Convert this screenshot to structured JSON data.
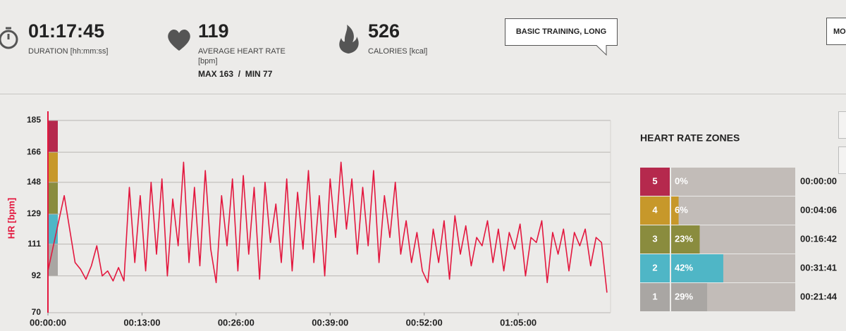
{
  "header": {
    "duration": {
      "value": "01:17:45",
      "label": "DURATION [hh:mm:ss]"
    },
    "heart_rate": {
      "value": "119",
      "label": "AVERAGE HEART RATE",
      "unit": "[bpm]",
      "range": "MAX 163  /  MIN 77"
    },
    "calories": {
      "value": "526",
      "label": "CALORIES [kcal]"
    },
    "training_type": "BASIC TRAINING, LONG",
    "partial_button": "MO"
  },
  "chart_data": {
    "type": "line",
    "y_label": "HR [bpm]",
    "color": "#e3173e",
    "grid": true,
    "x": [
      0,
      0.75,
      1.5,
      2.25,
      3,
      3.75,
      4.5,
      5.25,
      6,
      6.75,
      7.5,
      8.25,
      9,
      9.75,
      10.5,
      11.25,
      12,
      12.75,
      13.5,
      14.25,
      15,
      15.75,
      16.5,
      17.25,
      18,
      18.75,
      19.5,
      20.25,
      21,
      21.75,
      22.5,
      23.25,
      24,
      24.75,
      25.5,
      26.25,
      27,
      27.75,
      28.5,
      29.25,
      30,
      30.75,
      31.5,
      32.25,
      33,
      33.75,
      34.5,
      35.25,
      36,
      36.75,
      37.5,
      38.25,
      39,
      39.75,
      40.5,
      41.25,
      42,
      42.75,
      43.5,
      44.25,
      45,
      45.75,
      46.5,
      47.25,
      48,
      48.75,
      49.5,
      50.25,
      51,
      51.75,
      52.5,
      53.25,
      54,
      54.75,
      55.5,
      56.25,
      57,
      57.75,
      58.5,
      59.25,
      60,
      60.75,
      61.5,
      62.25,
      63,
      63.75,
      64.5,
      65.25,
      66,
      66.75,
      67.5,
      68.25,
      69,
      69.75,
      70.5,
      71.25,
      72,
      72.75,
      73.5,
      74.25,
      75,
      75.75,
      76.5,
      77.25
    ],
    "values": [
      95,
      110,
      125,
      140,
      120,
      100,
      96,
      90,
      98,
      110,
      92,
      95,
      89,
      97,
      89,
      145,
      100,
      140,
      95,
      148,
      105,
      150,
      92,
      138,
      110,
      160,
      100,
      145,
      98,
      155,
      108,
      88,
      140,
      110,
      150,
      95,
      152,
      105,
      145,
      90,
      148,
      112,
      135,
      100,
      150,
      95,
      142,
      108,
      155,
      100,
      140,
      92,
      150,
      115,
      160,
      120,
      150,
      105,
      145,
      110,
      155,
      100,
      140,
      115,
      148,
      105,
      125,
      100,
      118,
      95,
      88,
      120,
      100,
      125,
      90,
      128,
      105,
      122,
      98,
      115,
      110,
      125,
      100,
      120,
      95,
      118,
      108,
      123,
      92,
      115,
      112,
      125,
      88,
      118,
      105,
      120,
      95,
      118,
      110,
      120,
      98,
      115,
      112,
      82
    ],
    "xlim": [
      0,
      77.75
    ],
    "xticks": [
      {
        "value": 0,
        "label": "00:00:00"
      },
      {
        "value": 13,
        "label": "00:13:00"
      },
      {
        "value": 26,
        "label": "00:26:00"
      },
      {
        "value": 39,
        "label": "00:39:00"
      },
      {
        "value": 52,
        "label": "00:52:00"
      },
      {
        "value": 65,
        "label": "01:05:00"
      }
    ],
    "ylim": [
      70,
      185
    ],
    "yticks": [
      70,
      92,
      111,
      129,
      148,
      166,
      185
    ]
  },
  "zones": {
    "title": "HEART RATE ZONES",
    "rows": [
      {
        "zone": "5",
        "percent": 0,
        "percent_label": "0%",
        "time": "00:00:00",
        "color": "#b5294d"
      },
      {
        "zone": "4",
        "percent": 6,
        "percent_label": "6%",
        "time": "00:04:06",
        "color": "#c7982a"
      },
      {
        "zone": "3",
        "percent": 23,
        "percent_label": "23%",
        "time": "00:16:42",
        "color": "#8a8c3e"
      },
      {
        "zone": "2",
        "percent": 42,
        "percent_label": "42%",
        "time": "00:31:41",
        "color": "#4fb6c6"
      },
      {
        "zone": "1",
        "percent": 29,
        "percent_label": "29%",
        "time": "00:21:44",
        "color": "#a9a6a3"
      }
    ]
  }
}
